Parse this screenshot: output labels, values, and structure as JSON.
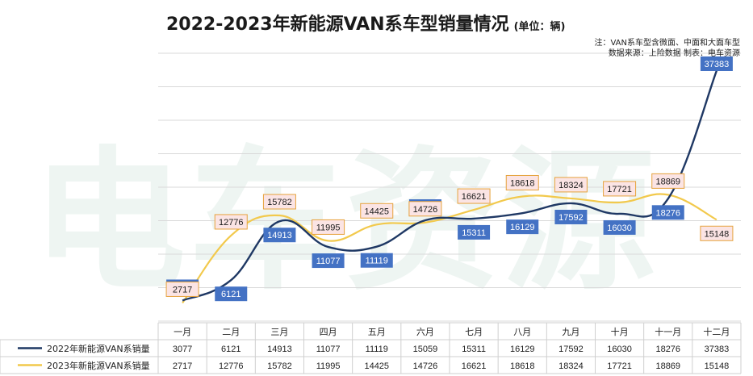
{
  "title": "2022-2023年新能源VAN系车型销量情况",
  "unit": "(单位：辆)",
  "note_line1": "注：VAN系车型含微面、中面和大面车型",
  "note_line2": "数据来源：上险数据  制表：电车资源",
  "watermark": "电车资源",
  "chart_data": {
    "type": "line",
    "categories": [
      "一月",
      "二月",
      "三月",
      "四月",
      "五月",
      "六月",
      "七月",
      "八月",
      "九月",
      "十月",
      "十一月",
      "十二月"
    ],
    "series": [
      {
        "name": "2022年新能源VAN系销量",
        "color": "#1f3864",
        "values": [
          3077,
          6121,
          14913,
          11077,
          11119,
          15059,
          15311,
          16129,
          17592,
          16030,
          18276,
          37383
        ]
      },
      {
        "name": "2023年新能源VAN系销量",
        "color": "#f2c94c",
        "values": [
          2717,
          12776,
          15782,
          11995,
          14425,
          14726,
          16621,
          18618,
          18324,
          17721,
          18869,
          15148
        ]
      }
    ],
    "ylim": [
      0,
      40000
    ],
    "grid": true,
    "legend": "bottom-table"
  }
}
